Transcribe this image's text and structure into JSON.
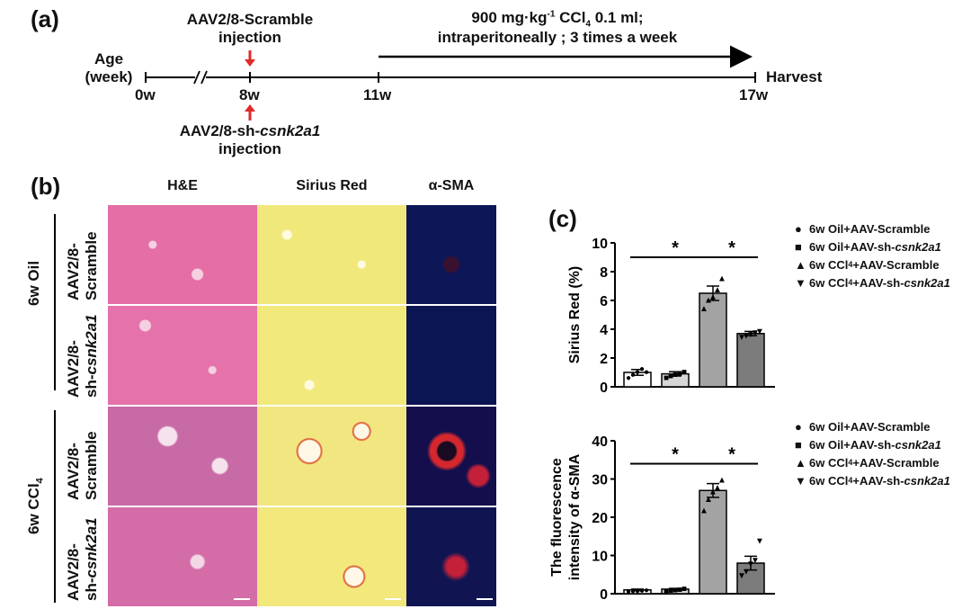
{
  "panel_a": {
    "label": "(a)",
    "age_label_line1": "Age",
    "age_label_line2": "(week)",
    "scramble_injection_line1": "AAV2/8-Scramble",
    "scramble_injection_line2": "injection",
    "sh_injection_line1_prefix": "AAV2/8-sh-",
    "sh_injection_line1_gene": "csnk2a1",
    "sh_injection_line2": "injection",
    "treatment_line1_prefix": "900 mg·kg",
    "treatment_line1_sup": "-1",
    "treatment_line1_mid": " CCl",
    "treatment_line1_sub": "4",
    "treatment_line1_suffix": " 0.1 ml;",
    "treatment_line2": "intraperitoneally ; 3 times a week",
    "harvest": "Harvest",
    "ticks": [
      "0w",
      "8w",
      "11w",
      "17w"
    ],
    "break_mark": "//"
  },
  "panel_b": {
    "label": "(b)",
    "columns": [
      "H&E",
      "Sirius Red",
      "α-SMA"
    ],
    "group_oil": "6w Oil",
    "group_ccl4_prefix": "6w CCl",
    "group_ccl4_sub": "4",
    "rows": [
      {
        "line1": "AAV2/8-",
        "line2": "Scramble",
        "italic": false
      },
      {
        "line1": "AAV2/8-",
        "line2_prefix": "sh-",
        "line2": "csnk2a1",
        "italic": true
      },
      {
        "line1": "AAV2/8-",
        "line2": "Scramble",
        "italic": false
      },
      {
        "line1": "AAV2/8-",
        "line2_prefix": "sh-",
        "line2": "csnk2a1",
        "italic": true
      }
    ],
    "colors": {
      "he": "#e46fa6",
      "sirius": "#f2e97a",
      "sma": "#0c1553",
      "red": "#e12a2a"
    }
  },
  "panel_c": {
    "label": "(c)",
    "legend": [
      {
        "symbol": "●",
        "text": "6w Oil+AAV-Scramble"
      },
      {
        "symbol": "■",
        "text_prefix": "6w Oil+AAV-sh-",
        "text_italic": "csnk2a1"
      },
      {
        "symbol": "▲",
        "text_prefix": "6w CCl",
        "text_sub": "4",
        "text_suffix": "+AAV-Scramble"
      },
      {
        "symbol": "▼",
        "text_prefix": "6w CCl",
        "text_sub": "4",
        "text_suffix": "+AAV-sh-",
        "text_italic": "csnk2a1"
      }
    ],
    "sig_marker": "*"
  },
  "chart_data": [
    {
      "type": "bar",
      "categories": [
        "6w Oil+AAV-Scramble",
        "6w Oil+AAV-sh-csnk2a1",
        "6w CCl4+AAV-Scramble",
        "6w CCl4+AAV-sh-csnk2a1"
      ],
      "values": [
        1.0,
        0.9,
        6.5,
        3.7
      ],
      "errors": [
        0.2,
        0.15,
        0.5,
        0.15
      ],
      "points": [
        [
          0.7,
          0.9,
          1.1,
          1.3,
          1.1
        ],
        [
          0.7,
          0.8,
          0.9,
          1.0,
          1.1
        ],
        [
          5.5,
          6.1,
          6.3,
          6.8,
          7.6
        ],
        [
          3.5,
          3.6,
          3.7,
          3.8,
          3.9
        ]
      ],
      "bar_colors": [
        "#ffffff",
        "#d6d6d6",
        "#a3a3a3",
        "#7c7c7c"
      ],
      "markers": [
        "●",
        "■",
        "▲",
        "▼"
      ],
      "ylabel": "Sirius Red (%)",
      "ylim": [
        0,
        10
      ],
      "yticks": [
        "0",
        "2",
        "4",
        "6",
        "8",
        "10"
      ],
      "significance": [
        {
          "from": 0,
          "to": 2,
          "y": 9.0,
          "label": "*"
        },
        {
          "from": 2,
          "to": 3,
          "y": 9.0,
          "label": "*"
        }
      ]
    },
    {
      "type": "bar",
      "categories": [
        "6w Oil+AAV-Scramble",
        "6w Oil+AAV-sh-csnk2a1",
        "6w CCl4+AAV-Scramble",
        "6w CCl4+AAV-sh-csnk2a1"
      ],
      "values": [
        1.0,
        1.2,
        27.0,
        8.0
      ],
      "errors": [
        0.2,
        0.2,
        1.8,
        1.8
      ],
      "points": [
        [
          0.8,
          0.9,
          1.0,
          1.1,
          1.2
        ],
        [
          0.9,
          1.1,
          1.2,
          1.3,
          1.5
        ],
        [
          22,
          25,
          27,
          28,
          30
        ],
        [
          5,
          6,
          8,
          9,
          14
        ]
      ],
      "bar_colors": [
        "#ffffff",
        "#d6d6d6",
        "#a3a3a3",
        "#7c7c7c"
      ],
      "markers": [
        "●",
        "■",
        "▲",
        "▼"
      ],
      "ylabel_line1": "The fluorescence",
      "ylabel_line2": "intensity of α-SMA",
      "ylim": [
        0,
        40
      ],
      "yticks": [
        "0",
        "10",
        "20",
        "30",
        "40"
      ],
      "significance": [
        {
          "from": 0,
          "to": 2,
          "y": 34,
          "label": "*"
        },
        {
          "from": 2,
          "to": 3,
          "y": 34,
          "label": "*"
        }
      ]
    }
  ]
}
